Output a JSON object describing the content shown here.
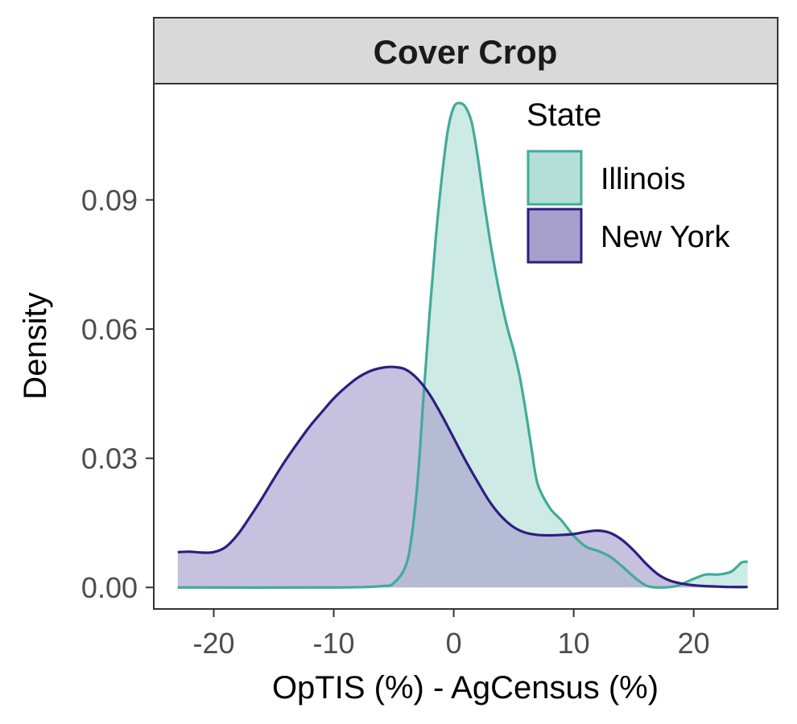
{
  "chart_data": {
    "type": "area",
    "panel_title": "Cover Crop",
    "xlabel": "OpTIS (%) - AgCensus (%)",
    "ylabel": "Density",
    "xlim": [
      -25,
      27
    ],
    "ylim": [
      -0.005,
      0.117
    ],
    "x_ticks": [
      -20,
      -10,
      0,
      10,
      20
    ],
    "x_tick_labels": [
      "-20",
      "-10",
      "0",
      "10",
      "20"
    ],
    "y_ticks": [
      0,
      0.03,
      0.06,
      0.09
    ],
    "y_tick_labels": [
      "0.00",
      "0.03",
      "0.06",
      "0.09"
    ],
    "grid": false,
    "legend": {
      "title": "State",
      "position": "top-right"
    },
    "series": [
      {
        "name": "Illinois",
        "stroke": "#41ab99",
        "fill": "#b4dfd6",
        "points": [
          [
            -23,
            0
          ],
          [
            -10,
            0
          ],
          [
            -6,
            0.0003
          ],
          [
            -5,
            0.001
          ],
          [
            -4,
            0.005
          ],
          [
            -3.5,
            0.012
          ],
          [
            -3,
            0.025
          ],
          [
            -2.5,
            0.045
          ],
          [
            -2,
            0.064
          ],
          [
            -1.5,
            0.081
          ],
          [
            -1,
            0.095
          ],
          [
            -0.5,
            0.106
          ],
          [
            0,
            0.1115
          ],
          [
            0.5,
            0.1125
          ],
          [
            1,
            0.1115
          ],
          [
            1.5,
            0.108
          ],
          [
            2,
            0.1
          ],
          [
            2.5,
            0.09
          ],
          [
            3,
            0.081
          ],
          [
            3.5,
            0.073
          ],
          [
            4,
            0.066
          ],
          [
            4.5,
            0.06
          ],
          [
            5,
            0.055
          ],
          [
            5.5,
            0.049
          ],
          [
            6,
            0.041
          ],
          [
            6.5,
            0.032
          ],
          [
            7,
            0.024
          ],
          [
            8,
            0.0185
          ],
          [
            9,
            0.0155
          ],
          [
            10,
            0.012
          ],
          [
            11,
            0.0095
          ],
          [
            12,
            0.0085
          ],
          [
            13,
            0.0072
          ],
          [
            14,
            0.005
          ],
          [
            15,
            0.0025
          ],
          [
            16,
            0.0005
          ],
          [
            17,
            0
          ],
          [
            18.5,
            0.0003
          ],
          [
            20,
            0.002
          ],
          [
            21,
            0.003
          ],
          [
            22,
            0.003
          ],
          [
            23,
            0.0035
          ],
          [
            23.5,
            0.0045
          ],
          [
            24,
            0.0058
          ],
          [
            24.5,
            0.006
          ]
        ]
      },
      {
        "name": "New York",
        "stroke": "#2d1e80",
        "fill": "#a79fcc",
        "points": [
          [
            -23,
            0.0082
          ],
          [
            -22,
            0.0083
          ],
          [
            -21,
            0.0081
          ],
          [
            -20,
            0.0082
          ],
          [
            -19,
            0.0094
          ],
          [
            -18,
            0.0123
          ],
          [
            -17,
            0.0163
          ],
          [
            -16,
            0.0206
          ],
          [
            -15,
            0.0252
          ],
          [
            -14,
            0.0296
          ],
          [
            -13,
            0.0336
          ],
          [
            -12,
            0.0374
          ],
          [
            -11,
            0.0407
          ],
          [
            -10,
            0.0439
          ],
          [
            -9,
            0.0465
          ],
          [
            -8,
            0.0487
          ],
          [
            -7,
            0.0502
          ],
          [
            -6,
            0.051
          ],
          [
            -5,
            0.0512
          ],
          [
            -4,
            0.0506
          ],
          [
            -3,
            0.0484
          ],
          [
            -2,
            0.0448
          ],
          [
            -1,
            0.04
          ],
          [
            0,
            0.0347
          ],
          [
            1,
            0.0294
          ],
          [
            2,
            0.0245
          ],
          [
            3,
            0.0199
          ],
          [
            4,
            0.0164
          ],
          [
            5,
            0.014
          ],
          [
            6,
            0.0127
          ],
          [
            7,
            0.0122
          ],
          [
            8,
            0.0121
          ],
          [
            9,
            0.0122
          ],
          [
            10,
            0.0124
          ],
          [
            11,
            0.0129
          ],
          [
            12,
            0.0132
          ],
          [
            13,
            0.0127
          ],
          [
            14,
            0.0111
          ],
          [
            15,
            0.0086
          ],
          [
            16,
            0.0056
          ],
          [
            17,
            0.0031
          ],
          [
            18,
            0.0016
          ],
          [
            19,
            0.0009
          ],
          [
            20,
            0.0005
          ],
          [
            21,
            0.0003
          ],
          [
            22,
            0.0002
          ],
          [
            23,
            0.0001
          ],
          [
            24.5,
            0.0001
          ]
        ]
      }
    ]
  }
}
